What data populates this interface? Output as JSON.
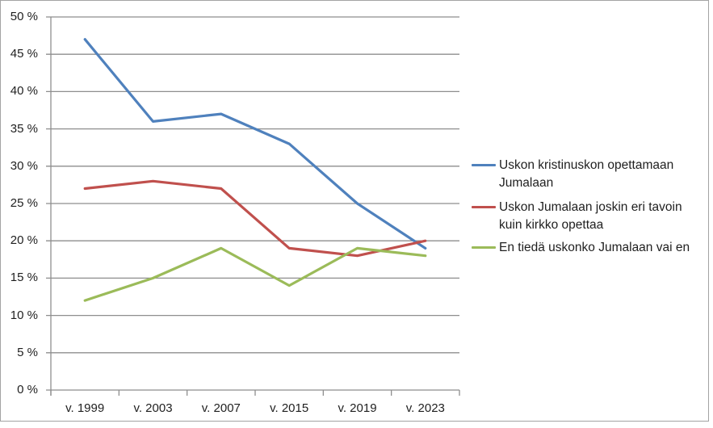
{
  "chart_data": {
    "type": "line",
    "title": "",
    "categories": [
      "v. 1999",
      "v. 2003",
      "v. 2007",
      "v. 2015",
      "v. 2019",
      "v. 2023"
    ],
    "series": [
      {
        "name": "Uskon kristinuskon opettamaan Jumalaan",
        "color": "#4F81BD",
        "values": [
          47,
          36,
          37,
          33,
          25,
          19
        ]
      },
      {
        "name": "Uskon Jumalaan joskin eri tavoin kuin kirkko opettaa",
        "color": "#C0504D",
        "values": [
          27,
          28,
          27,
          19,
          18,
          20
        ]
      },
      {
        "name": "En tiedä uskonko Jumalaan vai en",
        "color": "#9BBB59",
        "values": [
          12,
          15,
          19,
          14,
          19,
          18
        ]
      }
    ],
    "y_axis": {
      "min": 0,
      "max": 50,
      "step": 5,
      "tick_labels": [
        "0 %",
        "5 %",
        "10 %",
        "15 %",
        "20 %",
        "25 %",
        "30 %",
        "35 %",
        "40 %",
        "45 %",
        "50 %"
      ]
    },
    "xlabel": "",
    "ylabel": "",
    "grid": true,
    "legend_position": "right",
    "colors": {
      "gridline": "#8e8e8e",
      "axis": "#8e8e8e",
      "text": "#1f1f1f",
      "frame_border": "#a3a3a3",
      "background": "#ffffff"
    }
  }
}
